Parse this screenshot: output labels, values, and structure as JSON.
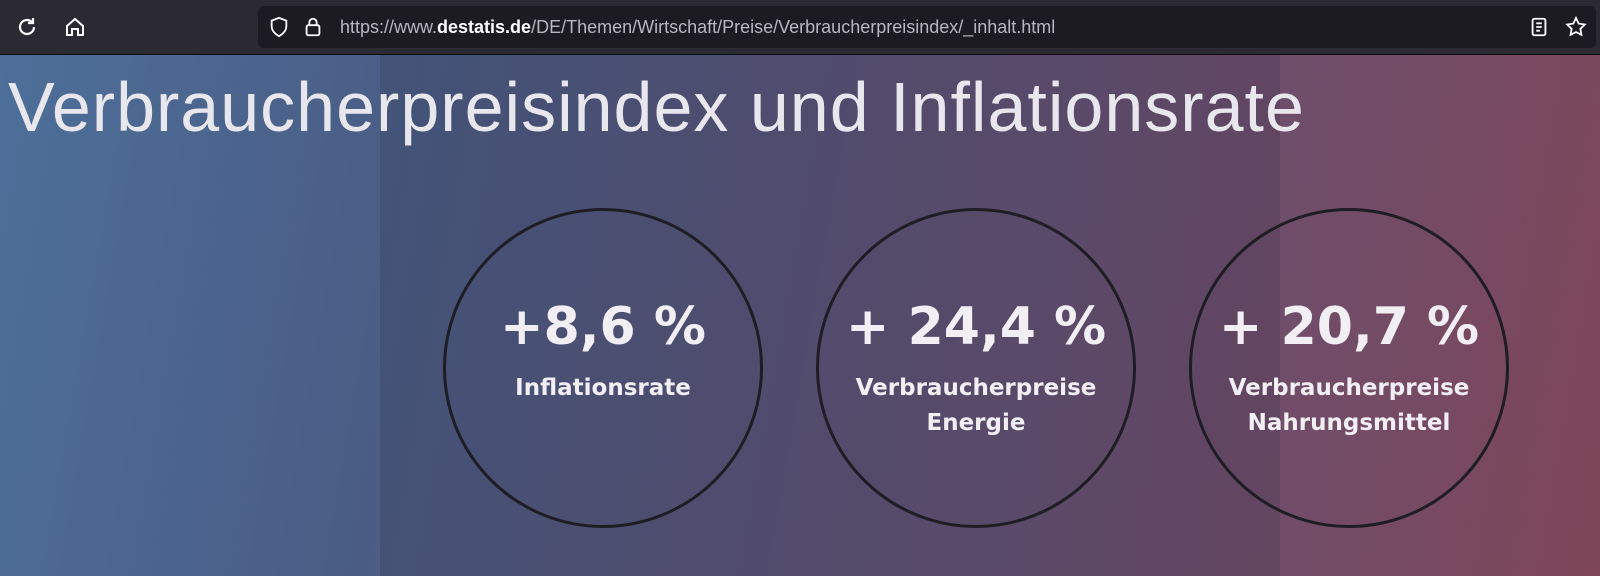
{
  "browser": {
    "url": {
      "scheme": "https://www.",
      "domain": "destatis.de",
      "path": "/DE/Themen/Wirtschaft/Preise/Verbraucherpreisindex/_inhalt.html"
    }
  },
  "hero": {
    "title": "Verbraucherpreisindex und Inflationsrate",
    "stats": [
      {
        "value": "+8,6 %",
        "label_lines": [
          "Inflationsrate"
        ]
      },
      {
        "value": "+ 24,4 %",
        "label_lines": [
          "Verbraucherpreise",
          "Energie"
        ]
      },
      {
        "value": "+ 20,7 %",
        "label_lines": [
          "Verbraucherpreise",
          "Nahrungsmittel"
        ]
      }
    ]
  }
}
